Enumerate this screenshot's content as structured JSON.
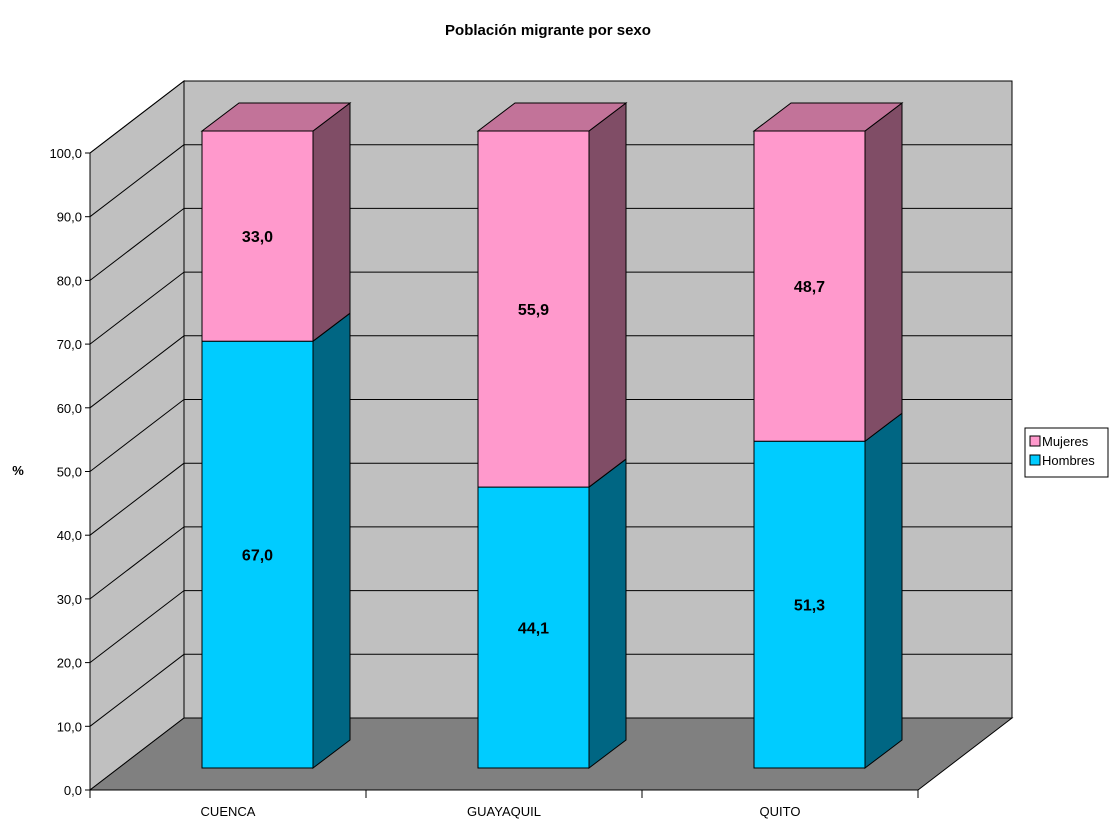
{
  "chart_data": {
    "type": "bar",
    "stacked": true,
    "three_d": true,
    "title": "Población migrante por sexo",
    "xlabel": "",
    "ylabel": "%",
    "ylim": [
      0,
      100
    ],
    "yticks": [
      "0,0",
      "10,0",
      "20,0",
      "30,0",
      "40,0",
      "50,0",
      "60,0",
      "70,0",
      "80,0",
      "90,0",
      "100,0"
    ],
    "categories": [
      "CUENCA",
      "GUAYAQUIL",
      "QUITO"
    ],
    "series": [
      {
        "name": "Hombres",
        "values": [
          67.0,
          44.1,
          51.3
        ],
        "labels": [
          "67,0",
          "44,1",
          "51,3"
        ],
        "color": "#00CCFF",
        "side_color": "#006683",
        "top_color": "#00A3CC"
      },
      {
        "name": "Mujeres",
        "values": [
          33.0,
          55.9,
          48.7
        ],
        "labels": [
          "33,0",
          "55,9",
          "48,7"
        ],
        "color": "#FF99CC",
        "side_color": "#804D66",
        "top_color": "#C27399"
      }
    ],
    "grid": true,
    "legend": {
      "position": "right",
      "order": [
        "Mujeres",
        "Hombres"
      ]
    },
    "wall_color": "#C0C0C0",
    "floor_color": "#808080"
  }
}
